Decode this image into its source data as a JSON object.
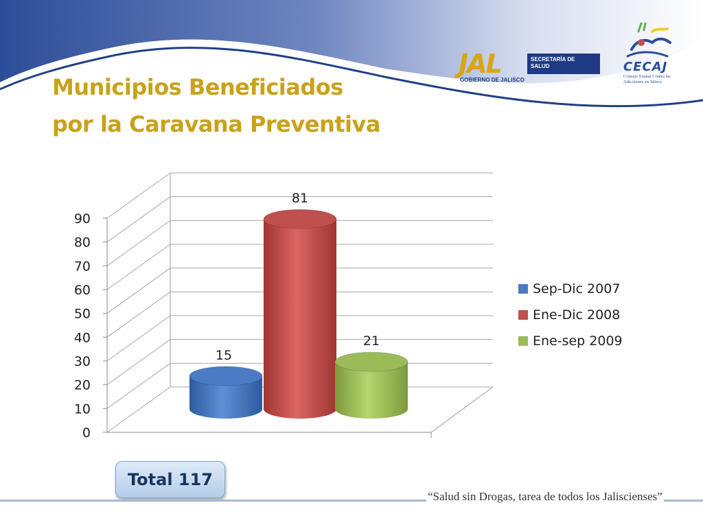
{
  "slide": {
    "title_line_1": "Municipios Beneficiados",
    "title_line_2": "por  la Caravana Preventiva",
    "total_label": "Total 117",
    "footer_quote": "“Salud sin Drogas, tarea de todos los Jaliscienses”"
  },
  "logos": {
    "jal_mark": "JAL",
    "jal_sub": "GOBIERNO DE JALISCO",
    "jal_box_line_1": "SECRETARÍA DE",
    "jal_box_line_2": "SALUD",
    "cecaj_word": "CECAJ",
    "cecaj_sub": "Consejo Estatal Contra las Adicciones en Jalisco"
  },
  "colors": {
    "title": "#c9a21a",
    "header_blue": "#2e4f9a",
    "series_blue": "#4a7bc4",
    "series_red": "#c0504d",
    "series_green": "#9bbb59"
  },
  "chart_data": {
    "type": "bar",
    "style": "3d-cylinder",
    "title": "",
    "xlabel": "",
    "ylabel": "",
    "ylim": [
      0,
      90
    ],
    "yticks": [
      0,
      10,
      20,
      30,
      40,
      50,
      60,
      70,
      80,
      90
    ],
    "grid": true,
    "legend_position": "right",
    "series": [
      {
        "name": "Sep-Dic 2007",
        "values": [
          15
        ],
        "color": "#4a7bc4"
      },
      {
        "name": "Ene-Dic 2008",
        "values": [
          81
        ],
        "color": "#c0504d"
      },
      {
        "name": "Ene-sep 2009",
        "values": [
          21
        ],
        "color": "#9bbb59"
      }
    ]
  }
}
